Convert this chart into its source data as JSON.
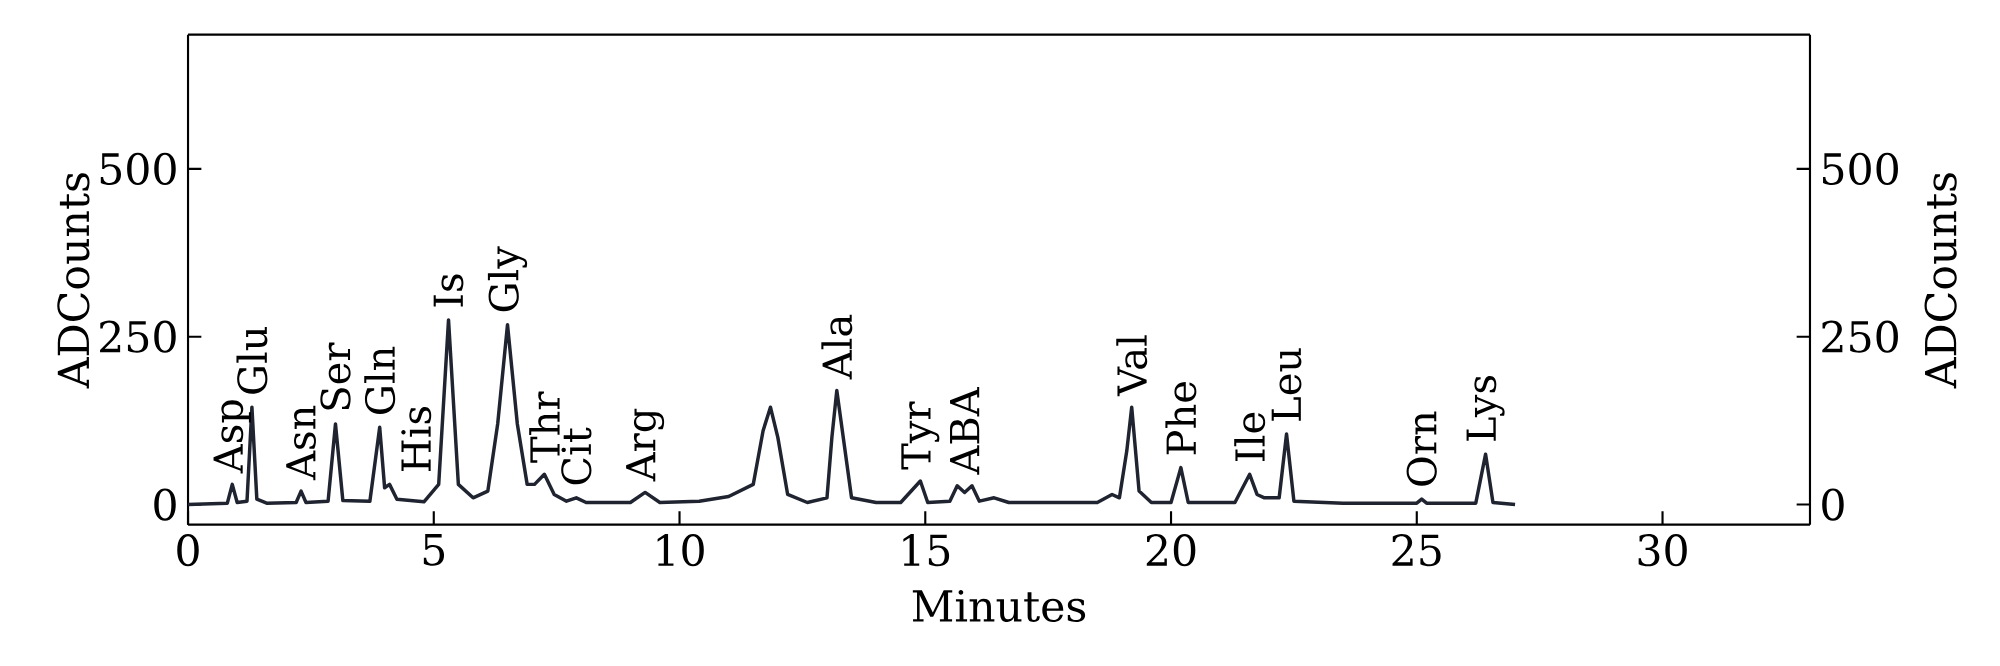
{
  "chart_data": {
    "type": "line",
    "xlabel": "Minutes",
    "ylabel": "ADCounts",
    "y2label": "ADCounts",
    "color": "#1f2430",
    "x": [
      0,
      0.8,
      0.9,
      1.0,
      1.2,
      1.3,
      1.4,
      1.6,
      2.2,
      2.3,
      2.4,
      2.85,
      3.0,
      3.15,
      3.7,
      3.9,
      4.0,
      4.1,
      4.25,
      4.8,
      5.1,
      5.3,
      5.5,
      5.8,
      6.1,
      6.3,
      6.5,
      6.7,
      6.9,
      7.05,
      7.25,
      7.45,
      7.7,
      7.9,
      8.1,
      9.0,
      9.3,
      9.6,
      10.4,
      11.0,
      11.5,
      11.7,
      11.85,
      12.0,
      12.2,
      12.6,
      13.0,
      13.1,
      13.2,
      13.35,
      13.5,
      14.0,
      14.5,
      14.9,
      15.05,
      15.5,
      15.65,
      15.8,
      15.95,
      16.1,
      16.4,
      16.7,
      18.5,
      18.8,
      18.95,
      19.1,
      19.2,
      19.35,
      19.6,
      20.0,
      20.2,
      20.35,
      21.3,
      21.6,
      21.75,
      21.9,
      22.2,
      22.35,
      22.5,
      23.5,
      25.0,
      25.1,
      25.2,
      26.2,
      26.4,
      26.55,
      27
    ],
    "values": [
      0,
      2,
      30,
      3,
      5,
      145,
      8,
      2,
      3,
      20,
      3,
      5,
      120,
      6,
      5,
      115,
      25,
      30,
      8,
      4,
      30,
      275,
      30,
      10,
      20,
      120,
      268,
      120,
      30,
      30,
      45,
      15,
      5,
      10,
      3,
      3,
      18,
      3,
      5,
      12,
      30,
      110,
      145,
      100,
      15,
      3,
      10,
      100,
      170,
      90,
      10,
      3,
      3,
      35,
      3,
      5,
      28,
      18,
      28,
      5,
      10,
      3,
      3,
      15,
      10,
      80,
      145,
      20,
      3,
      3,
      55,
      3,
      3,
      45,
      15,
      10,
      10,
      105,
      5,
      2,
      2,
      8,
      2,
      2,
      75,
      3,
      0
    ],
    "xlim": [
      0,
      33
    ],
    "xticks": [
      0,
      5,
      10,
      15,
      20,
      25,
      30
    ],
    "ylim": [
      -30,
      700
    ],
    "yticks": [
      0,
      250,
      500
    ],
    "y2lim": [
      -30,
      700
    ],
    "y2ticks": [
      0,
      250,
      500
    ],
    "annotations": [
      {
        "text": "Asp",
        "x": 0.9,
        "y": 30
      },
      {
        "text": "Glu",
        "x": 1.3,
        "y": 145
      },
      {
        "text": "Asn",
        "x": 2.3,
        "y": 20
      },
      {
        "text": "Ser",
        "x": 3.0,
        "y": 120
      },
      {
        "text": "Gln",
        "x": 3.9,
        "y": 115
      },
      {
        "text": "His",
        "x": 4.1,
        "y": 30
      },
      {
        "text": "Is",
        "x": 5.3,
        "y": 275
      },
      {
        "text": "Gly",
        "x": 6.5,
        "y": 268
      },
      {
        "text": "Thr",
        "x": 7.25,
        "y": 45
      },
      {
        "text": "Cit",
        "x": 7.9,
        "y": 10
      },
      {
        "text": "Arg",
        "x": 9.3,
        "y": 18
      },
      {
        "text": "Ala",
        "x": 13.2,
        "y": 170
      },
      {
        "text": "Tyr",
        "x": 14.9,
        "y": 35
      },
      {
        "text": "ABA",
        "x": 15.8,
        "y": 28
      },
      {
        "text": "Val",
        "x": 19.2,
        "y": 145
      },
      {
        "text": "Phe",
        "x": 20.2,
        "y": 55
      },
      {
        "text": "Ile",
        "x": 21.6,
        "y": 45
      },
      {
        "text": "Leu",
        "x": 22.35,
        "y": 105
      },
      {
        "text": "Orn",
        "x": 25.1,
        "y": 8
      },
      {
        "text": "Lys",
        "x": 26.4,
        "y": 75
      }
    ]
  }
}
